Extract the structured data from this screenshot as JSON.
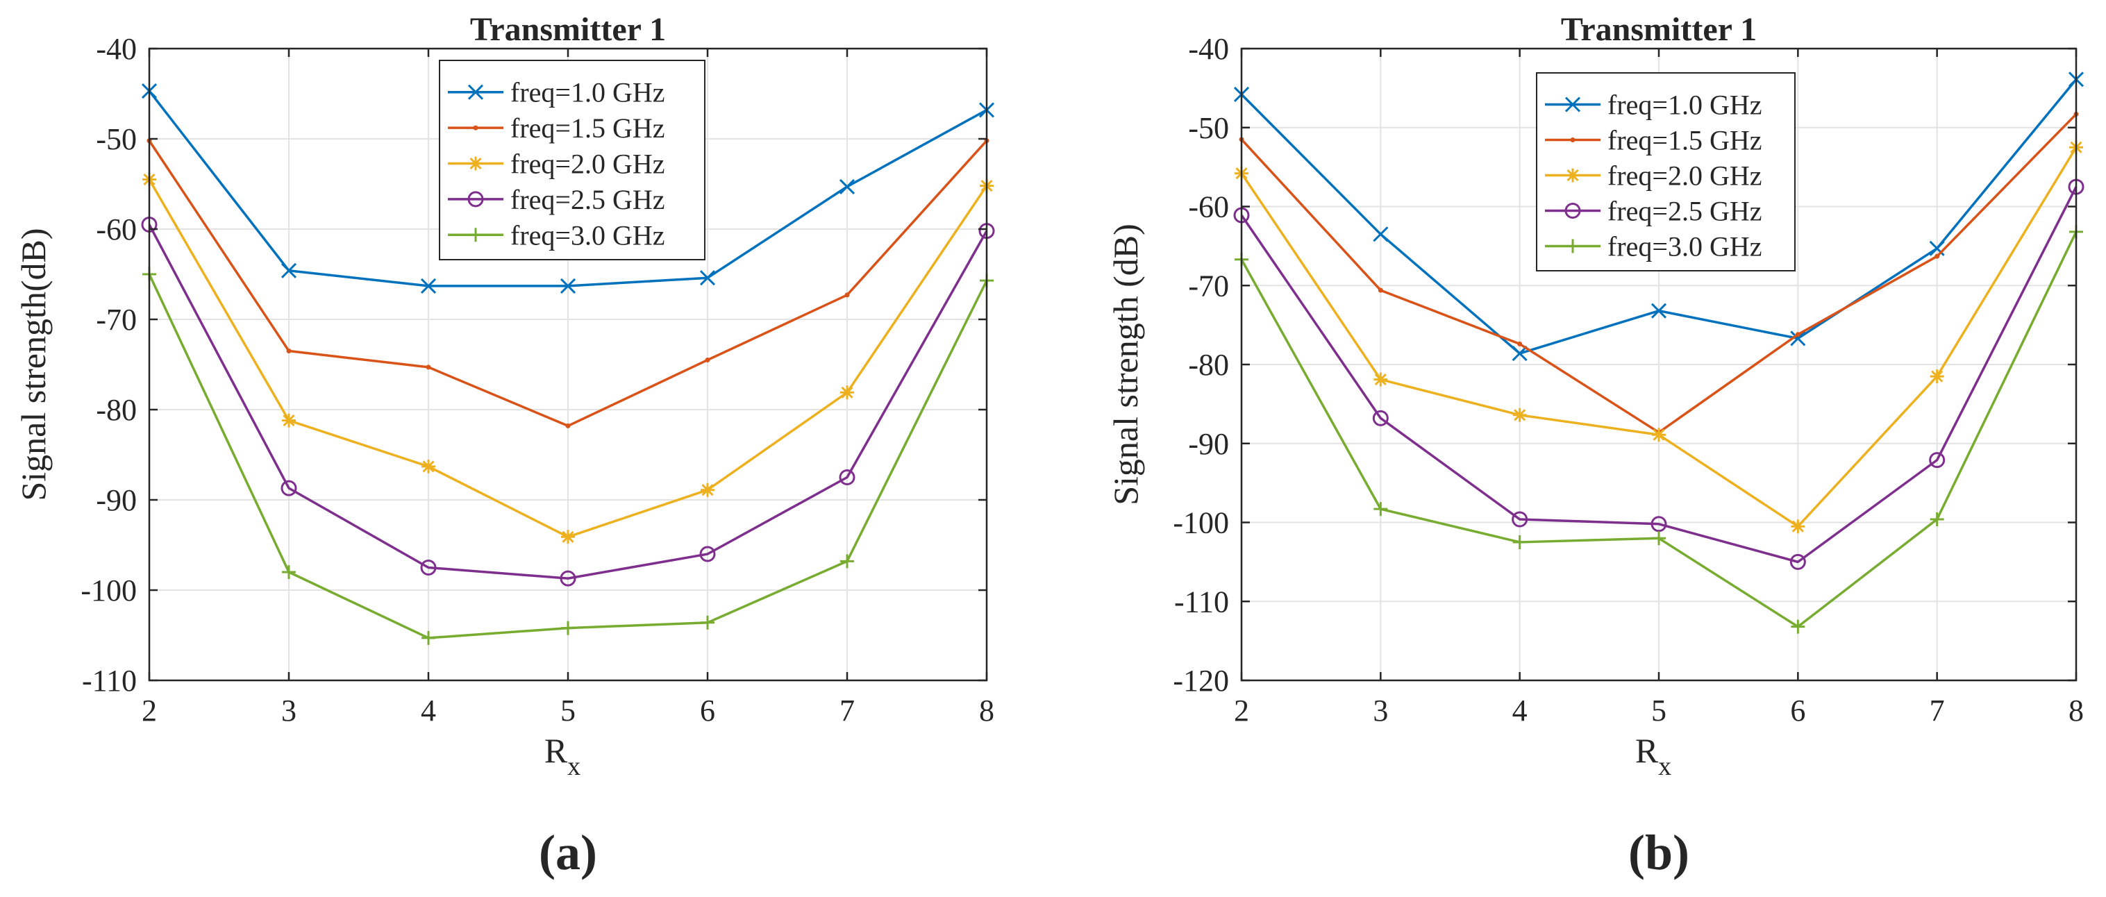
{
  "chart_data": [
    {
      "type": "line",
      "panel_label": "(a)",
      "title": "Transmitter 1",
      "xlabel": "R",
      "xlabel_sub": "x",
      "ylabel": "Signal strength(dB)",
      "xlim": [
        2,
        8
      ],
      "ylim": [
        -110,
        -40
      ],
      "x_ticks": [
        "2",
        "3",
        "4",
        "5",
        "6",
        "7",
        "8"
      ],
      "y_ticks": [
        "-40",
        "-50",
        "-60",
        "-70",
        "-80",
        "-90",
        "-100",
        "-110"
      ],
      "grid": true,
      "legend_position": "top-center",
      "x": [
        2,
        3,
        4,
        5,
        6,
        7,
        8
      ],
      "series": [
        {
          "name": "freq=1.0 GHz",
          "marker": "x",
          "color": "#0072BD",
          "values": [
            -44.7,
            -64.6,
            -66.3,
            -66.3,
            -65.4,
            -55.3,
            -46.8
          ]
        },
        {
          "name": "freq=1.5 GHz",
          "marker": "dot",
          "color": "#D95319",
          "values": [
            -50.2,
            -73.5,
            -75.3,
            -81.8,
            -74.5,
            -67.3,
            -50.2
          ]
        },
        {
          "name": "freq=2.0 GHz",
          "marker": "star",
          "color": "#EDB120",
          "values": [
            -54.5,
            -81.2,
            -86.3,
            -94.1,
            -88.9,
            -78.1,
            -55.2
          ]
        },
        {
          "name": "freq=2.5 GHz",
          "marker": "circle",
          "color": "#7E2F8E",
          "values": [
            -59.5,
            -88.7,
            -97.5,
            -98.7,
            -96.0,
            -87.5,
            -60.2
          ]
        },
        {
          "name": "freq=3.0 GHz",
          "marker": "plus",
          "color": "#77AC30",
          "values": [
            -65.0,
            -98.0,
            -105.3,
            -104.2,
            -103.6,
            -96.8,
            -65.7
          ]
        }
      ]
    },
    {
      "type": "line",
      "panel_label": "(b)",
      "title": "Transmitter 1",
      "xlabel": "R",
      "xlabel_sub": "x",
      "ylabel": "Signal strength (dB)",
      "xlim": [
        2,
        8
      ],
      "ylim": [
        -120,
        -40
      ],
      "x_ticks": [
        "2",
        "3",
        "4",
        "5",
        "6",
        "7",
        "8"
      ],
      "y_ticks": [
        "-40",
        "-50",
        "-60",
        "-70",
        "-80",
        "-90",
        "-100",
        "-110",
        "-120"
      ],
      "grid": true,
      "legend_position": "top-center",
      "x": [
        2,
        3,
        4,
        5,
        6,
        7,
        8
      ],
      "series": [
        {
          "name": "freq=1.0 GHz",
          "marker": "x",
          "color": "#0072BD",
          "values": [
            -45.8,
            -63.5,
            -78.6,
            -73.2,
            -76.7,
            -65.3,
            -43.9
          ]
        },
        {
          "name": "freq=1.5 GHz",
          "marker": "dot",
          "color": "#D95319",
          "values": [
            -51.5,
            -70.6,
            -77.4,
            -88.6,
            -76.2,
            -66.3,
            -48.3
          ]
        },
        {
          "name": "freq=2.0 GHz",
          "marker": "star",
          "color": "#EDB120",
          "values": [
            -55.8,
            -81.9,
            -86.4,
            -88.9,
            -100.5,
            -81.5,
            -52.5
          ]
        },
        {
          "name": "freq=2.5 GHz",
          "marker": "circle",
          "color": "#7E2F8E",
          "values": [
            -61.1,
            -86.8,
            -99.6,
            -100.2,
            -105.0,
            -92.1,
            -57.5
          ]
        },
        {
          "name": "freq=3.0 GHz",
          "marker": "plus",
          "color": "#77AC30",
          "values": [
            -66.7,
            -98.3,
            -102.5,
            -102.0,
            -113.2,
            -99.6,
            -63.2
          ]
        }
      ]
    }
  ]
}
